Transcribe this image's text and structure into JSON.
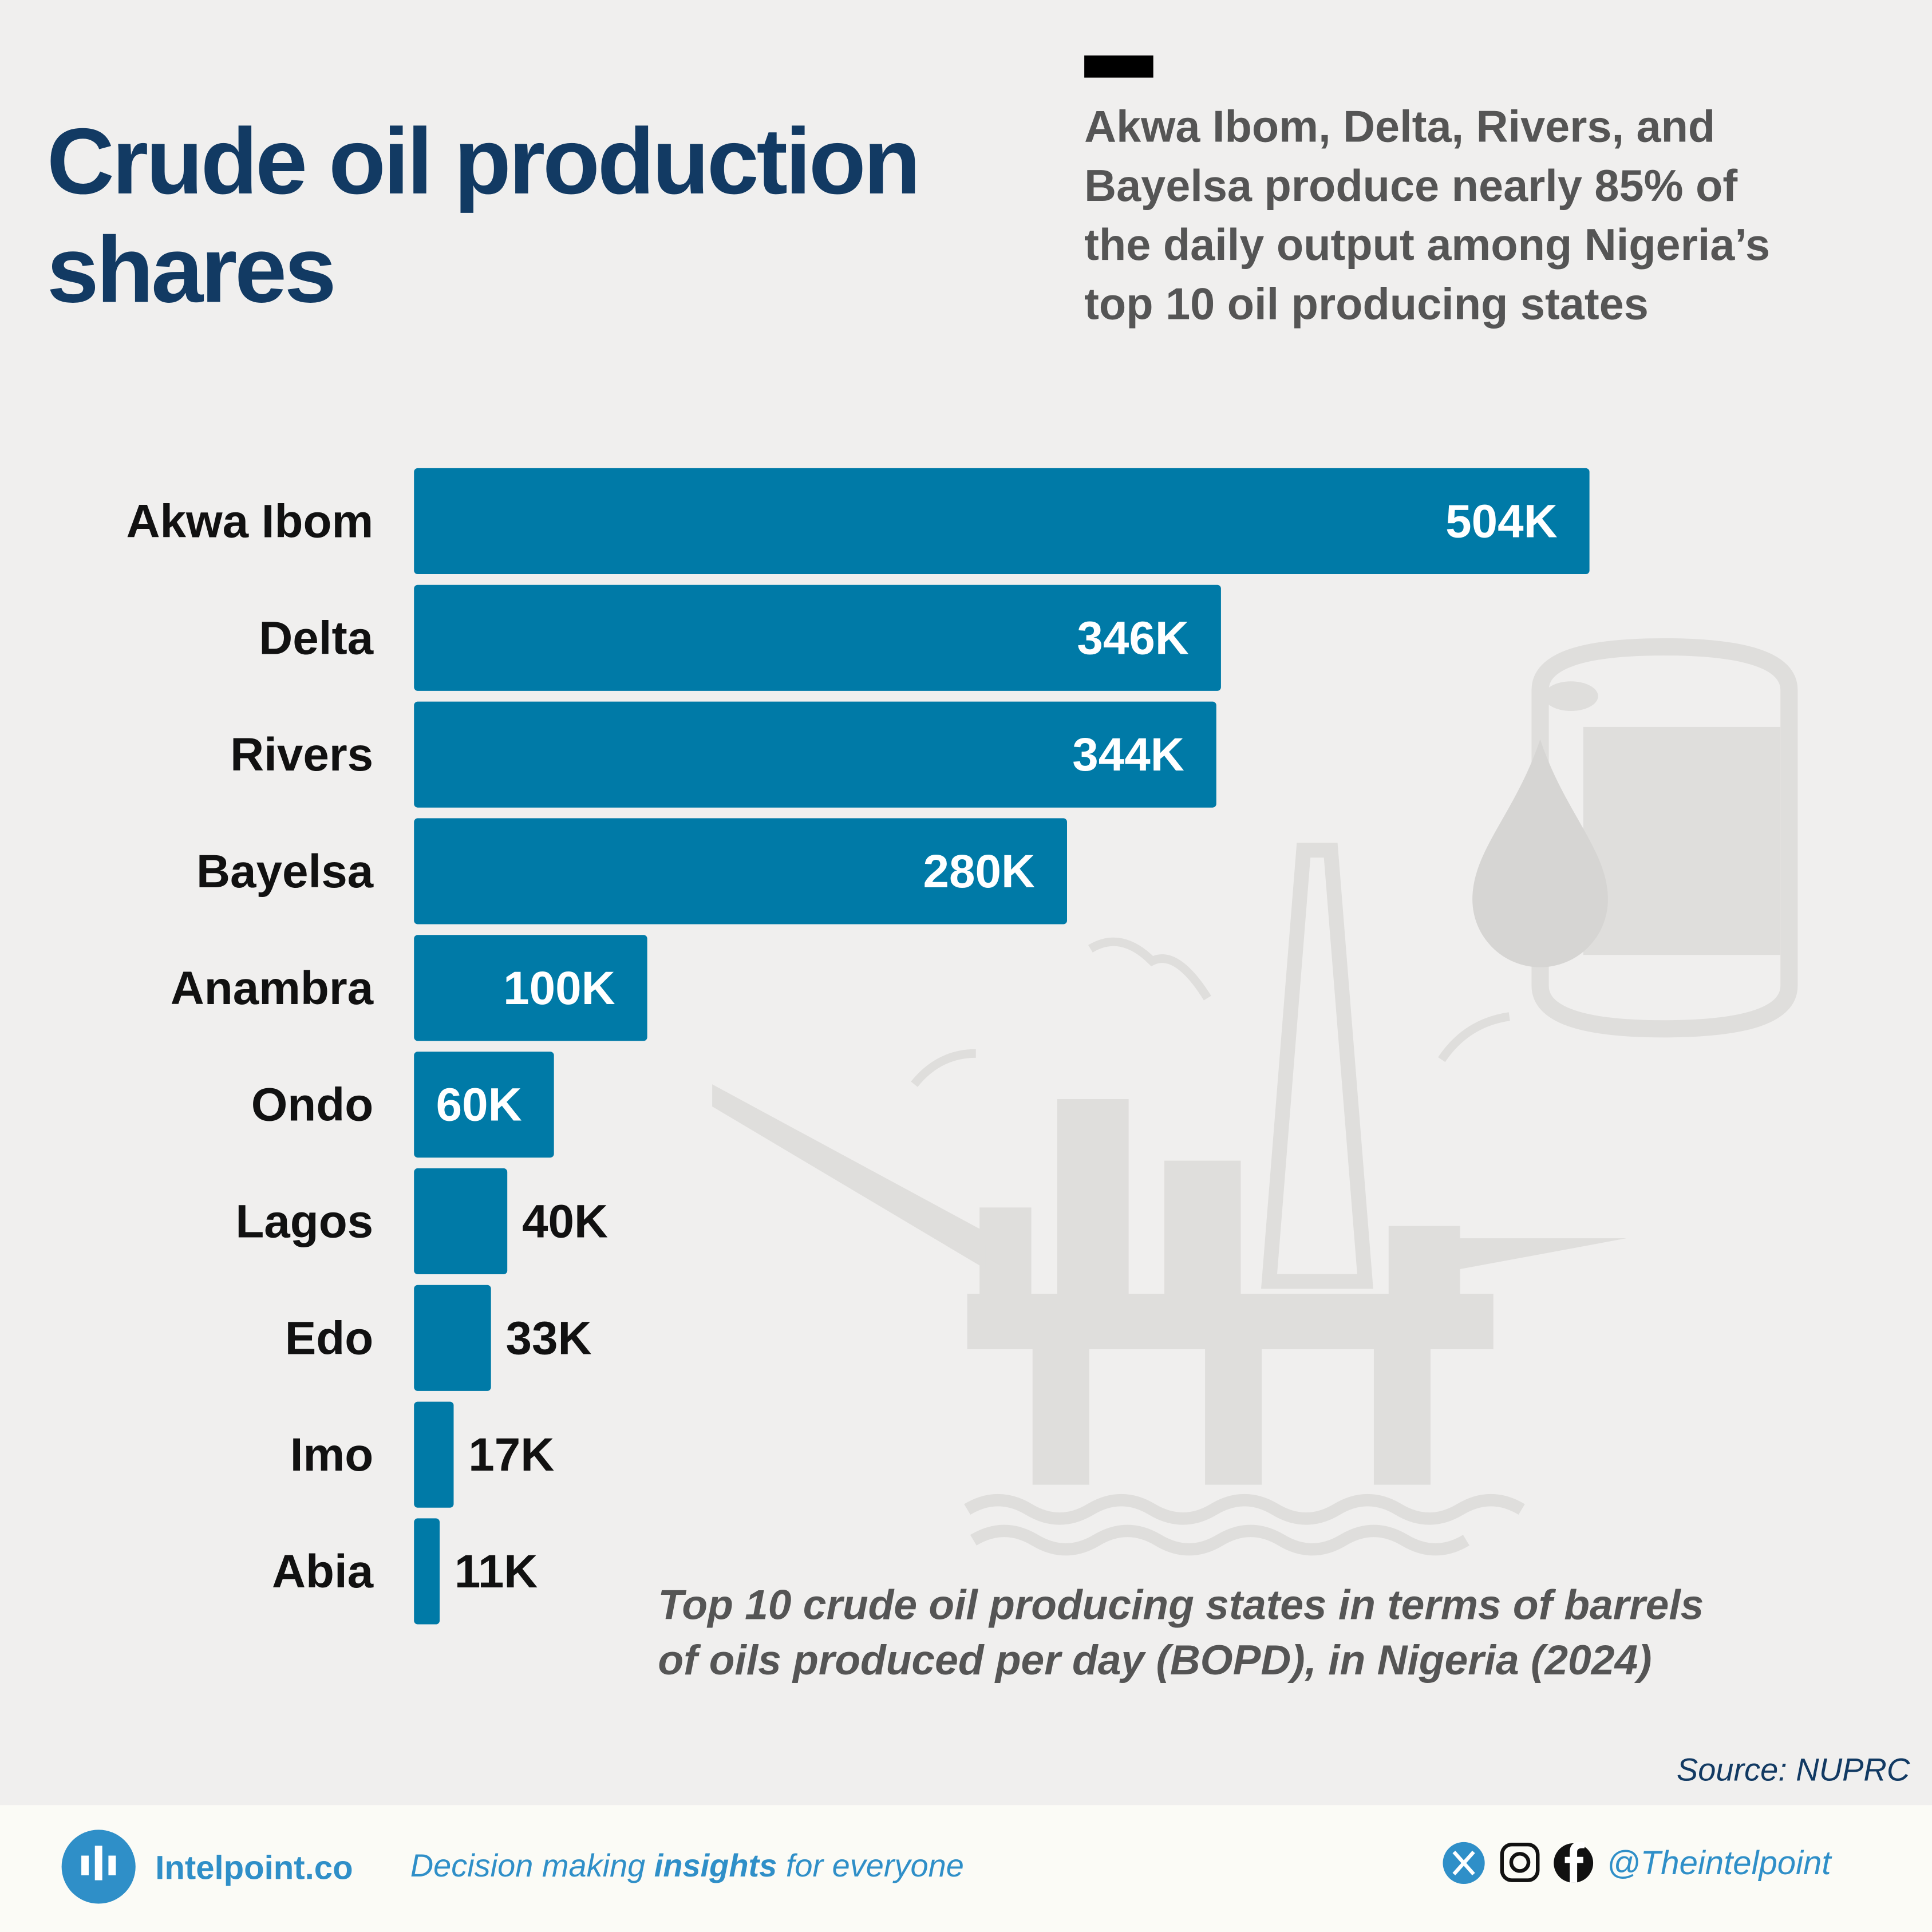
{
  "chart_data": {
    "type": "bar",
    "orientation": "horizontal",
    "title": [
      "Crude oil production",
      "shares"
    ],
    "subtitle": [
      "Akwa Ibom, Delta, Rivers, and",
      "Bayelsa produce nearly 85% of",
      "the daily output among Nigeria’s",
      "top 10 oil producing states"
    ],
    "note": [
      "Top 10 crude oil producing states in terms of barrels",
      "of oils produced per day (BOPD), in Nigeria (2024)"
    ],
    "source": "Source: NUPRC",
    "categories": [
      "Akwa Ibom",
      "Delta",
      "Rivers",
      "Bayelsa",
      "Anambra",
      "Ondo",
      "Lagos",
      "Edo",
      "Imo",
      "Abia"
    ],
    "values": [
      504000,
      346000,
      344000,
      280000,
      100000,
      60000,
      40000,
      33000,
      17000,
      11000
    ],
    "value_labels": [
      "504K",
      "346K",
      "344K",
      "280K",
      "100K",
      "60K",
      "40K",
      "33K",
      "17K",
      "11K"
    ],
    "color": "#007aa7"
  },
  "footer": {
    "brand": "Intelpoint.co",
    "tagline": [
      "Decision making ",
      "insights",
      " for everyone"
    ],
    "handle": "@Theintelpoint"
  }
}
